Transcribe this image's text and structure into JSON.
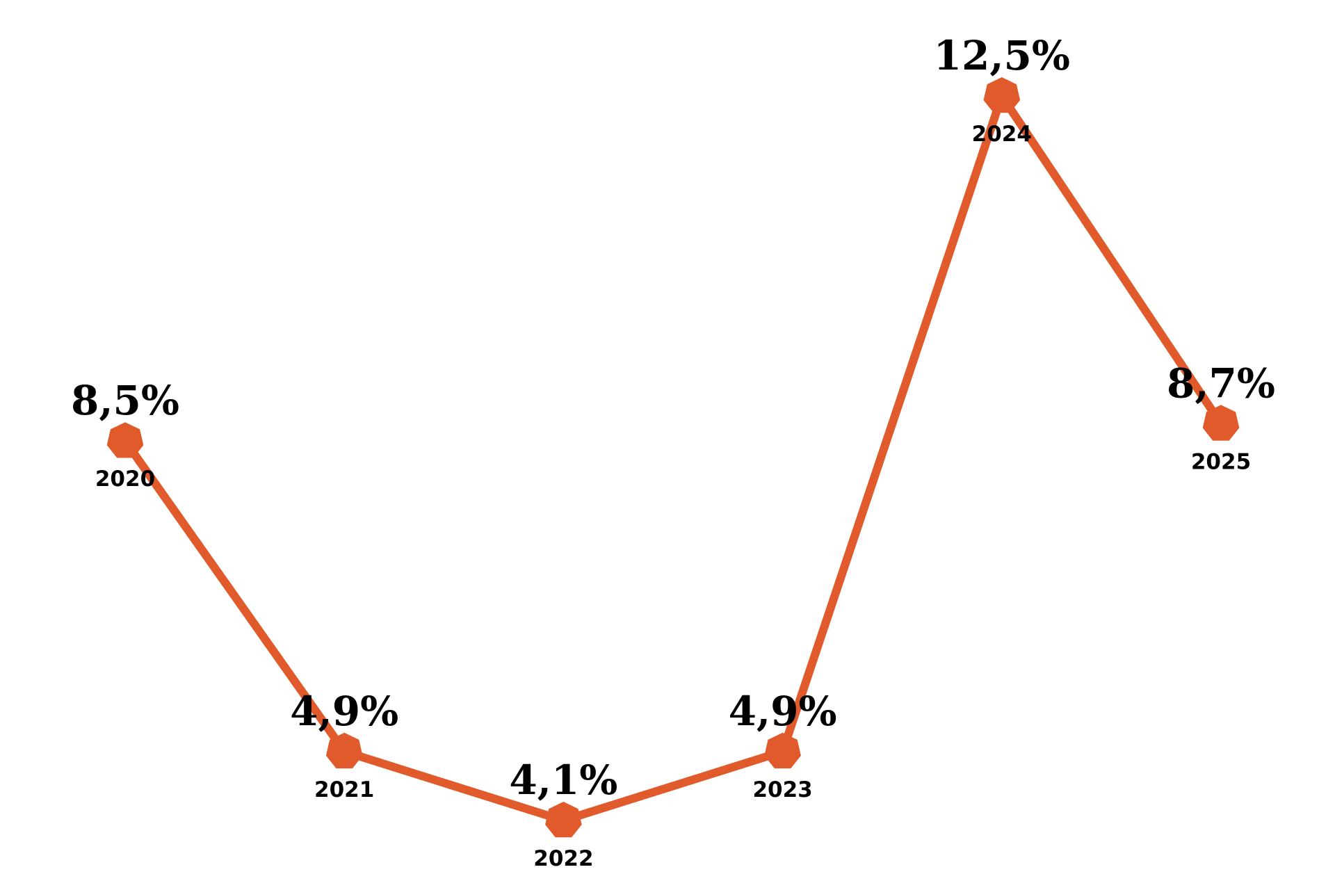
{
  "chart_data": {
    "type": "line",
    "x": [
      "2020",
      "2021",
      "2022",
      "2023",
      "2024",
      "2025"
    ],
    "series": [
      {
        "values": [
          8.5,
          4.9,
          4.1,
          4.9,
          12.5,
          8.7
        ],
        "labels": [
          "8,5%",
          "4,9%",
          "4,1%",
          "4,9%",
          "12,5%",
          "8,7%"
        ]
      }
    ],
    "ylim": [
      4.1,
      12.5
    ],
    "grid": false,
    "legend": "none",
    "marker": "heptagon",
    "color": "#E05A2B"
  }
}
